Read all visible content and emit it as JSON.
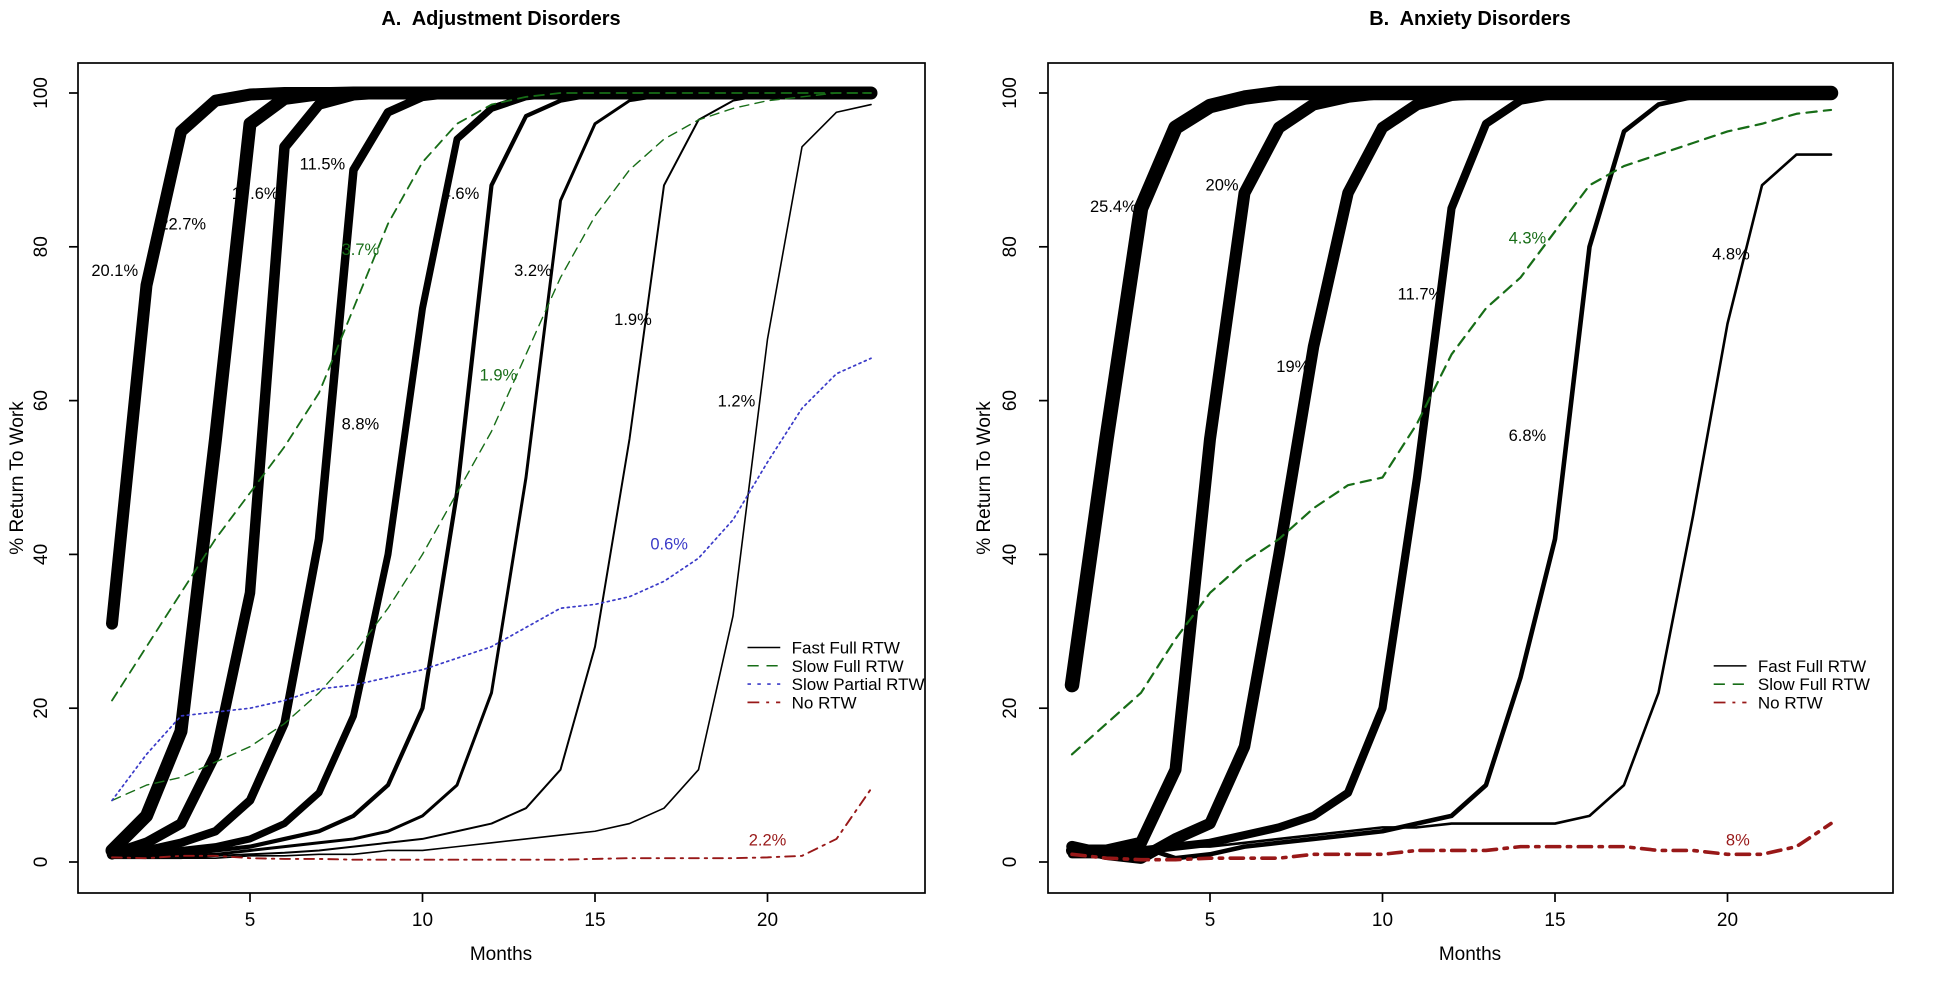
{
  "figure": {
    "panel_a_title": "A.  Adjustment Disorders",
    "panel_b_title": "B.  Anxiety Disorders",
    "x_axis_title": "Months",
    "y_axis_title": "% Return To Work"
  },
  "colors": {
    "black": "#000000",
    "green": "#176d17",
    "blue": "#3a3ac8",
    "dark_red": "#981818"
  },
  "chart_data": [
    {
      "type": "line",
      "panel": "A",
      "title": "A.  Adjustment Disorders",
      "xlabel": "Months",
      "ylabel": "% Return To Work",
      "xlim": [
        1,
        23
      ],
      "ylim": [
        0,
        100
      ],
      "x_ticks": [
        5,
        10,
        15,
        20
      ],
      "y_ticks": [
        0,
        20,
        40,
        60,
        80,
        100
      ],
      "grid": false,
      "x": [
        1,
        2,
        3,
        4,
        5,
        6,
        7,
        8,
        9,
        10,
        11,
        12,
        13,
        14,
        15,
        16,
        17,
        18,
        19,
        20,
        21,
        22,
        23
      ],
      "series": [
        {
          "name": "Fast Full RTW class 20.1%",
          "group": "Fast Full RTW",
          "class_share": 20.1,
          "color": "#000000",
          "style": "solid",
          "width": 12,
          "values": [
            31,
            75,
            95,
            99,
            99.8,
            100,
            100,
            100,
            100,
            100,
            100,
            100,
            100,
            100,
            100,
            100,
            100,
            100,
            100,
            100,
            100,
            100,
            100
          ]
        },
        {
          "name": "Fast Full RTW class 22.7%",
          "group": "Fast Full RTW",
          "class_share": 22.7,
          "color": "#000000",
          "style": "solid",
          "width": 13,
          "values": [
            1.5,
            6,
            17,
            55,
            96,
            99.3,
            99.9,
            100,
            100,
            100,
            100,
            100,
            100,
            100,
            100,
            100,
            100,
            100,
            100,
            100,
            100,
            100,
            100
          ]
        },
        {
          "name": "Fast Full RTW class 17.6%",
          "group": "Fast Full RTW",
          "class_share": 17.6,
          "color": "#000000",
          "style": "solid",
          "width": 10.5,
          "values": [
            1,
            2.5,
            5,
            14,
            35,
            93,
            98.5,
            99.7,
            100,
            100,
            100,
            100,
            100,
            100,
            100,
            100,
            100,
            100,
            100,
            100,
            100,
            100,
            100
          ]
        },
        {
          "name": "Fast Full RTW class 11.5%",
          "group": "Fast Full RTW",
          "class_share": 11.5,
          "color": "#000000",
          "style": "solid",
          "width": 8.5,
          "values": [
            1,
            1.5,
            2.5,
            4,
            8,
            18,
            42,
            90,
            97.5,
            99.5,
            100,
            100,
            100,
            100,
            100,
            100,
            100,
            100,
            100,
            100,
            100,
            100,
            100
          ]
        },
        {
          "name": "Fast Full RTW class 8.8%",
          "group": "Fast Full RTW",
          "class_share": 8.8,
          "color": "#000000",
          "style": "solid",
          "width": 7,
          "values": [
            1,
            1,
            1.5,
            2,
            3,
            5,
            9,
            19,
            40,
            72,
            94,
            98,
            99.5,
            100,
            100,
            100,
            100,
            100,
            100,
            100,
            100,
            100,
            100
          ]
        },
        {
          "name": "Fast Full RTW class 4.6%",
          "group": "Fast Full RTW",
          "class_share": 4.6,
          "color": "#000000",
          "style": "solid",
          "width": 4.2,
          "values": [
            0.8,
            0.8,
            1,
            1.5,
            2,
            3,
            4,
            6,
            10,
            20,
            48,
            88,
            97,
            99,
            99.8,
            100,
            100,
            100,
            100,
            100,
            100,
            100,
            100
          ]
        },
        {
          "name": "Fast Full RTW class 3.2%",
          "group": "Fast Full RTW",
          "class_share": 3.2,
          "color": "#000000",
          "style": "solid",
          "width": 3,
          "values": [
            0.8,
            0.8,
            0.8,
            1,
            1.5,
            2,
            2.5,
            3,
            4,
            6,
            10,
            22,
            50,
            86,
            96,
            99,
            99.7,
            100,
            100,
            100,
            100,
            100,
            100
          ]
        },
        {
          "name": "Fast Full RTW class 1.9%",
          "group": "Fast Full RTW",
          "class_share": 1.9,
          "color": "#000000",
          "style": "solid",
          "width": 2,
          "values": [
            0.5,
            0.5,
            0.5,
            0.8,
            1,
            1.2,
            1.5,
            2,
            2.5,
            3,
            4,
            5,
            7,
            12,
            28,
            55,
            88,
            96.5,
            99,
            99.8,
            100,
            100,
            100
          ]
        },
        {
          "name": "Fast Full RTW class 1.2%",
          "group": "Fast Full RTW",
          "class_share": 1.2,
          "color": "#000000",
          "style": "solid",
          "width": 1.6,
          "values": [
            0.5,
            0.5,
            0.5,
            0.5,
            0.8,
            0.8,
            1,
            1,
            1.5,
            1.5,
            2,
            2.5,
            3,
            3.5,
            4,
            5,
            7,
            12,
            32,
            68,
            93,
            97.5,
            98.5
          ]
        },
        {
          "name": "Slow Full RTW class 3.7%",
          "group": "Slow Full RTW",
          "class_share": 3.7,
          "color": "#176d17",
          "style": "dashed",
          "width": 1.8,
          "values": [
            21,
            28,
            35,
            42,
            48,
            54,
            61,
            72,
            83,
            91,
            96,
            98.5,
            99.5,
            100,
            100,
            100,
            100,
            100,
            100,
            100,
            100,
            100,
            100
          ]
        },
        {
          "name": "Slow Full RTW class 1.9%",
          "group": "Slow Full RTW",
          "class_share": 1.9,
          "color": "#176d17",
          "style": "dashed",
          "width": 1.4,
          "values": [
            8,
            10,
            11,
            13,
            15,
            18,
            22,
            27,
            33,
            40,
            48,
            56,
            66,
            76,
            84,
            90,
            94,
            96.5,
            98,
            99,
            99.5,
            100,
            100
          ]
        },
        {
          "name": "Slow Partial RTW class 0.6%",
          "group": "Slow Partial RTW",
          "class_share": 0.6,
          "color": "#3a3ac8",
          "style": "dotted",
          "width": 1.7,
          "values": [
            8,
            14,
            19,
            19.5,
            20,
            21,
            22.5,
            23,
            24,
            25,
            26.5,
            28,
            30.5,
            33,
            33.5,
            34.5,
            36.5,
            39.5,
            44.5,
            52,
            59,
            63.5,
            65.5
          ]
        },
        {
          "name": "No RTW class 2.2%",
          "group": "No RTW",
          "class_share": 2.2,
          "color": "#981818",
          "style": "dashdot",
          "width": 1.9,
          "values": [
            0.6,
            0.5,
            0.8,
            0.8,
            0.5,
            0.4,
            0.4,
            0.3,
            0.3,
            0.3,
            0.3,
            0.3,
            0.3,
            0.3,
            0.4,
            0.5,
            0.5,
            0.5,
            0.5,
            0.6,
            0.8,
            3,
            9.5
          ]
        }
      ],
      "annotations": [
        {
          "text": "20.1%",
          "x": 1.08,
          "y": 77,
          "color": "#000000"
        },
        {
          "text": "22.7%",
          "x": 3.05,
          "y": 83,
          "color": "#000000"
        },
        {
          "text": "17.6%",
          "x": 5.15,
          "y": 87,
          "color": "#000000"
        },
        {
          "text": "11.5%",
          "x": 7.1,
          "y": 90.8,
          "color": "#000000"
        },
        {
          "text": "8.8%",
          "x": 8.2,
          "y": 57,
          "color": "#000000"
        },
        {
          "text": "4.6%",
          "x": 11.1,
          "y": 87,
          "color": "#000000"
        },
        {
          "text": "3.2%",
          "x": 13.2,
          "y": 77,
          "color": "#000000"
        },
        {
          "text": "1.9%",
          "x": 16.1,
          "y": 70.6,
          "color": "#000000"
        },
        {
          "text": "1.2%",
          "x": 19.1,
          "y": 60,
          "color": "#000000"
        },
        {
          "text": "3.7%",
          "x": 8.2,
          "y": 79.7,
          "color": "#176d17"
        },
        {
          "text": "1.9%",
          "x": 12.2,
          "y": 63.4,
          "color": "#176d17"
        },
        {
          "text": "0.6%",
          "x": 17.15,
          "y": 41.4,
          "color": "#3a3ac8"
        },
        {
          "text": "2.2%",
          "x": 20.0,
          "y": 2.9,
          "color": "#981818"
        }
      ],
      "legend": {
        "position": "right-middle",
        "x_month": 19.42,
        "top_pct": 27.9,
        "row_step_pct": 2.38,
        "entries": [
          {
            "label": "Fast Full RTW",
            "color": "#000000",
            "style": "solid",
            "width": 1.5
          },
          {
            "label": "Slow Full RTW",
            "color": "#176d17",
            "style": "dashed",
            "width": 1.6
          },
          {
            "label": "Slow Partial RTW",
            "color": "#3a3ac8",
            "style": "dotted",
            "width": 1.7
          },
          {
            "label": "No RTW",
            "color": "#981818",
            "style": "dashdot",
            "width": 1.7
          }
        ]
      }
    },
    {
      "type": "line",
      "panel": "B",
      "title": "B.  Anxiety Disorders",
      "xlabel": "Months",
      "ylabel": "% Return To Work",
      "xlim": [
        1,
        23
      ],
      "ylim": [
        0,
        100
      ],
      "x_ticks": [
        5,
        10,
        15,
        20
      ],
      "y_ticks": [
        0,
        20,
        40,
        60,
        80,
        100
      ],
      "grid": false,
      "x": [
        1,
        2,
        3,
        4,
        5,
        6,
        7,
        8,
        9,
        10,
        11,
        12,
        13,
        14,
        15,
        16,
        17,
        18,
        19,
        20,
        21,
        22,
        23
      ],
      "series": [
        {
          "name": "Fast Full RTW class 25.4%",
          "group": "Fast Full RTW",
          "class_share": 25.4,
          "color": "#000000",
          "style": "solid",
          "width": 14.5,
          "values": [
            23,
            55,
            85,
            95.5,
            98.3,
            99.4,
            100,
            100,
            100,
            100,
            100,
            100,
            100,
            100,
            100,
            100,
            100,
            100,
            100,
            100,
            100,
            100,
            100
          ]
        },
        {
          "name": "Fast Full RTW class 20%",
          "group": "Fast Full RTW",
          "class_share": 20,
          "color": "#000000",
          "style": "solid",
          "width": 12,
          "values": [
            1.5,
            1.5,
            2.5,
            12,
            55,
            87,
            95.5,
            98.5,
            99.5,
            100,
            100,
            100,
            100,
            100,
            100,
            100,
            100,
            100,
            100,
            100,
            100,
            100,
            100
          ]
        },
        {
          "name": "Fast Full RTW class 19%",
          "group": "Fast Full RTW",
          "class_share": 19,
          "color": "#000000",
          "style": "solid",
          "width": 11.5,
          "values": [
            2,
            1,
            0.5,
            3,
            5,
            15,
            40,
            67,
            87,
            95.5,
            98.5,
            99.7,
            100,
            100,
            100,
            100,
            100,
            100,
            100,
            100,
            100,
            100,
            100
          ]
        },
        {
          "name": "Fast Full RTW class 11.7%",
          "group": "Fast Full RTW",
          "class_share": 11.7,
          "color": "#000000",
          "style": "solid",
          "width": 8.2,
          "values": [
            1,
            1,
            1.5,
            2,
            2.5,
            3.5,
            4.5,
            6,
            9,
            20,
            50,
            85,
            96,
            99,
            99.8,
            100,
            100,
            100,
            100,
            100,
            100,
            100,
            100
          ]
        },
        {
          "name": "Fast Full RTW class 6.8%",
          "group": "Fast Full RTW",
          "class_share": 6.8,
          "color": "#000000",
          "style": "solid",
          "width": 4.6,
          "values": [
            1.5,
            1,
            2,
            0.5,
            1,
            2,
            2.5,
            3,
            3.5,
            4,
            5,
            6,
            10,
            24,
            42,
            80,
            95,
            98.5,
            99.5,
            100,
            100,
            100,
            100
          ]
        },
        {
          "name": "Fast Full RTW class 4.8%",
          "group": "Fast Full RTW",
          "class_share": 4.8,
          "color": "#000000",
          "style": "solid",
          "width": 2.6,
          "values": [
            1,
            1.5,
            1,
            2,
            2,
            2.5,
            3,
            3.5,
            4,
            4.5,
            4.5,
            5,
            5,
            5,
            5,
            6,
            10,
            22,
            45,
            70,
            88,
            92,
            92
          ]
        },
        {
          "name": "Slow Full RTW class 4.3%",
          "group": "Slow Full RTW",
          "class_share": 4.3,
          "color": "#176d17",
          "style": "dashed",
          "width": 2.2,
          "values": [
            14,
            18,
            22,
            29,
            35,
            39,
            42,
            46,
            49,
            50,
            57,
            66,
            72,
            76,
            82,
            88,
            90.5,
            92,
            93.5,
            95,
            96,
            97.3,
            97.8
          ]
        },
        {
          "name": "No RTW class 8%",
          "group": "No RTW",
          "class_share": 8,
          "color": "#981818",
          "style": "dashdot",
          "width": 3.6,
          "values": [
            1,
            0.5,
            0.3,
            0.3,
            0.5,
            0.5,
            0.5,
            1,
            1,
            1,
            1.5,
            1.5,
            1.5,
            2,
            2,
            2,
            2,
            1.5,
            1.5,
            1,
            1,
            2,
            5
          ]
        }
      ],
      "annotations": [
        {
          "text": "25.4%",
          "x": 2.2,
          "y": 85.3,
          "color": "#000000"
        },
        {
          "text": "20%",
          "x": 5.35,
          "y": 88.1,
          "color": "#000000"
        },
        {
          "text": "19%",
          "x": 7.4,
          "y": 64.5,
          "color": "#000000"
        },
        {
          "text": "11.7%",
          "x": 11.1,
          "y": 73.9,
          "color": "#000000"
        },
        {
          "text": "6.8%",
          "x": 14.2,
          "y": 55.5,
          "color": "#000000"
        },
        {
          "text": "4.8%",
          "x": 20.1,
          "y": 79.1,
          "color": "#000000"
        },
        {
          "text": "4.3%",
          "x": 14.2,
          "y": 81.2,
          "color": "#176d17"
        },
        {
          "text": "8%",
          "x": 20.3,
          "y": 2.9,
          "color": "#981818"
        }
      ],
      "legend": {
        "position": "right-middle",
        "x_month": 19.6,
        "top_pct": 25.5,
        "row_step_pct": 2.38,
        "entries": [
          {
            "label": "Fast Full RTW",
            "color": "#000000",
            "style": "solid",
            "width": 1.5
          },
          {
            "label": "Slow Full RTW",
            "color": "#176d17",
            "style": "dashed",
            "width": 1.6
          },
          {
            "label": "No RTW",
            "color": "#981818",
            "style": "dashdot",
            "width": 1.7
          }
        ]
      }
    }
  ]
}
